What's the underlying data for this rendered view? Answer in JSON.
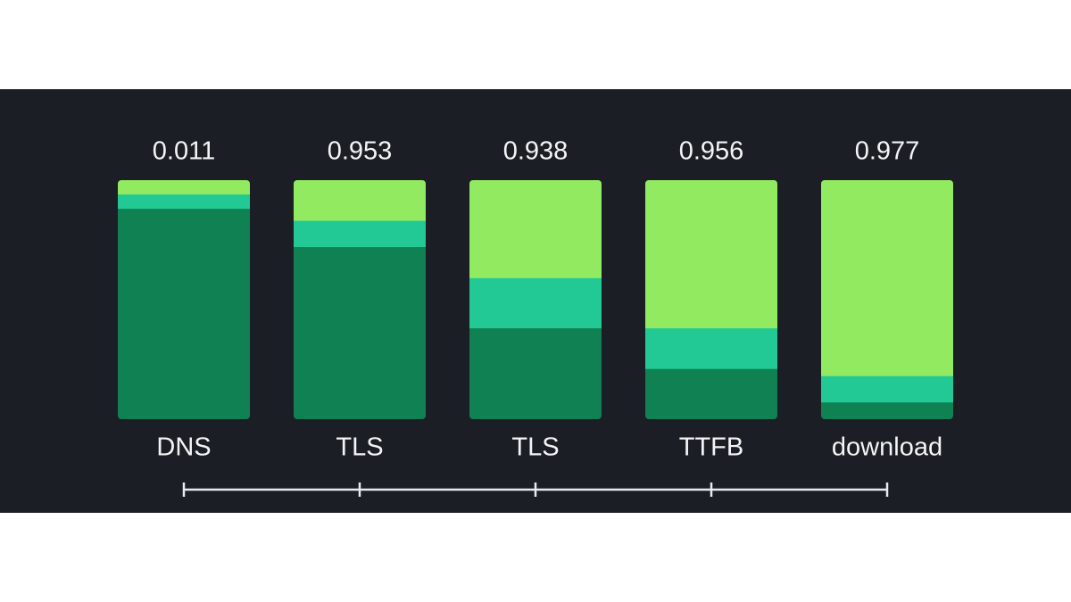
{
  "columns": [
    {
      "value": 0.011,
      "label": "DNS",
      "segments": [
        0.06,
        0.06,
        0.88
      ]
    },
    {
      "value": 0.953,
      "label": "TLS",
      "segments": [
        0.17,
        0.11,
        0.72
      ]
    },
    {
      "value": 0.938,
      "label": "TLS",
      "segments": [
        0.41,
        0.21,
        0.38
      ]
    },
    {
      "value": 0.956,
      "label": "TTFB",
      "segments": [
        0.62,
        0.17,
        0.21
      ]
    },
    {
      "value": 0.977,
      "label": "download",
      "segments": [
        0.82,
        0.11,
        0.07
      ]
    }
  ],
  "segment_colors": [
    "#91ea60",
    "#22c995",
    "#0f8152"
  ]
}
